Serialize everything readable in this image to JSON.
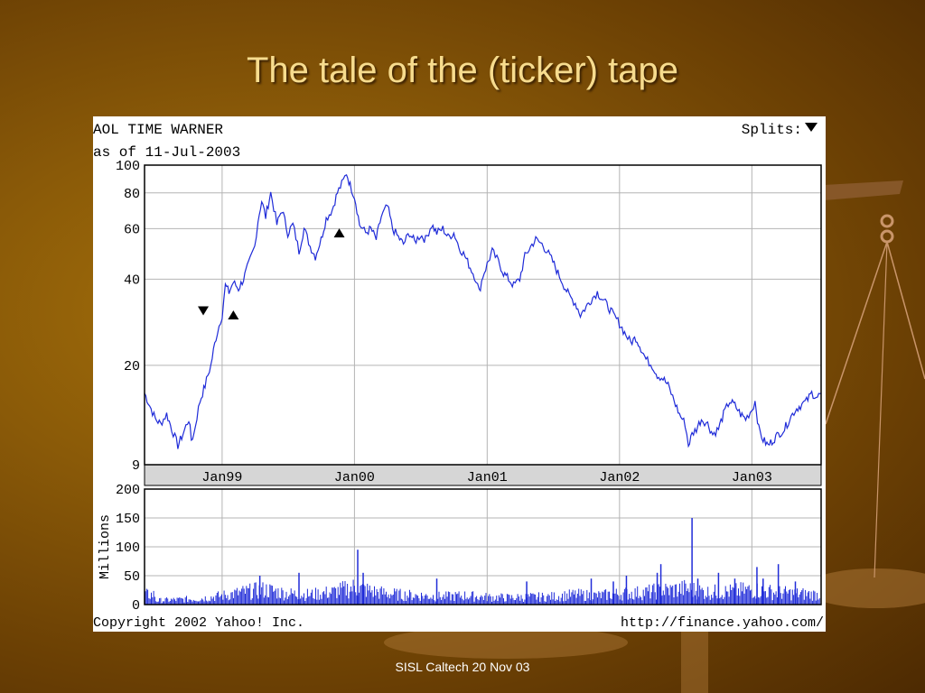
{
  "slide": {
    "title": "The tale of the (ticker) tape",
    "footer": "SISL Caltech 20 Nov 03"
  },
  "chart_data": {
    "type": "line",
    "title": "AOL TIME WARNER",
    "subtitle": "as of 11-Jul-2003",
    "splits_label": "Splits:",
    "copyright": "Copyright 2002 Yahoo! Inc.",
    "url": "http://finance.yahoo.com/",
    "price_axis": {
      "scale": "log",
      "ylim": [
        9,
        100
      ],
      "ticks": [
        9,
        20,
        40,
        60,
        80,
        100
      ],
      "grid": true
    },
    "x_axis": {
      "range": [
        "1998-06-01",
        "2003-07-11"
      ],
      "ticks": [
        {
          "date": "1999-01-01",
          "label": "Jan99"
        },
        {
          "date": "2000-01-01",
          "label": "Jan00"
        },
        {
          "date": "2001-01-01",
          "label": "Jan01"
        },
        {
          "date": "2002-01-01",
          "label": "Jan02"
        },
        {
          "date": "2003-01-01",
          "label": "Jan03"
        }
      ]
    },
    "price_series": {
      "name": "",
      "color": "#1f2bd8",
      "points": [
        [
          "1998-06-01",
          16
        ],
        [
          "1998-06-15",
          14.5
        ],
        [
          "1998-07-01",
          13
        ],
        [
          "1998-07-15",
          12.5
        ],
        [
          "1998-08-01",
          13.5
        ],
        [
          "1998-08-15",
          12
        ],
        [
          "1998-09-01",
          10.5
        ],
        [
          "1998-09-15",
          11.5
        ],
        [
          "1998-10-01",
          13
        ],
        [
          "1998-10-08",
          11
        ],
        [
          "1998-10-15",
          11.5
        ],
        [
          "1998-11-01",
          15
        ],
        [
          "1998-11-15",
          17
        ],
        [
          "1998-12-01",
          20
        ],
        [
          "1998-12-15",
          25
        ],
        [
          "1999-01-01",
          30
        ],
        [
          "1999-01-10",
          38
        ],
        [
          "1999-01-20",
          36
        ],
        [
          "1999-02-01",
          39
        ],
        [
          "1999-02-15",
          37
        ],
        [
          "1999-03-01",
          40
        ],
        [
          "1999-03-15",
          45
        ],
        [
          "1999-04-01",
          52
        ],
        [
          "1999-04-10",
          64
        ],
        [
          "1999-04-20",
          75
        ],
        [
          "1999-05-01",
          66
        ],
        [
          "1999-05-15",
          80
        ],
        [
          "1999-06-01",
          62
        ],
        [
          "1999-06-15",
          70
        ],
        [
          "1999-07-01",
          58
        ],
        [
          "1999-07-15",
          62
        ],
        [
          "1999-08-01",
          50
        ],
        [
          "1999-08-15",
          60
        ],
        [
          "1999-09-01",
          52
        ],
        [
          "1999-09-15",
          48
        ],
        [
          "1999-10-01",
          55
        ],
        [
          "1999-10-15",
          65
        ],
        [
          "1999-11-01",
          70
        ],
        [
          "1999-11-15",
          80
        ],
        [
          "1999-12-01",
          88
        ],
        [
          "1999-12-10",
          94
        ],
        [
          "1999-12-20",
          85
        ],
        [
          "2000-01-01",
          78
        ],
        [
          "2000-01-15",
          62
        ],
        [
          "2000-02-01",
          58
        ],
        [
          "2000-02-15",
          60
        ],
        [
          "2000-03-01",
          55
        ],
        [
          "2000-03-15",
          66
        ],
        [
          "2000-04-01",
          72
        ],
        [
          "2000-04-15",
          60
        ],
        [
          "2000-05-01",
          56
        ],
        [
          "2000-05-15",
          53
        ],
        [
          "2000-06-01",
          58
        ],
        [
          "2000-06-15",
          54
        ],
        [
          "2000-07-01",
          57
        ],
        [
          "2000-07-15",
          55
        ],
        [
          "2000-08-01",
          62
        ],
        [
          "2000-08-15",
          58
        ],
        [
          "2000-09-01",
          60
        ],
        [
          "2000-09-15",
          56
        ],
        [
          "2000-10-01",
          58
        ],
        [
          "2000-10-15",
          52
        ],
        [
          "2000-11-01",
          48
        ],
        [
          "2000-11-15",
          44
        ],
        [
          "2000-12-01",
          40
        ],
        [
          "2000-12-10",
          36
        ],
        [
          "2000-12-20",
          41
        ],
        [
          "2001-01-01",
          45
        ],
        [
          "2001-01-15",
          50
        ],
        [
          "2001-02-01",
          46
        ],
        [
          "2001-02-15",
          42
        ],
        [
          "2001-03-01",
          40
        ],
        [
          "2001-03-15",
          38
        ],
        [
          "2001-04-01",
          40
        ],
        [
          "2001-04-15",
          48
        ],
        [
          "2001-05-01",
          52
        ],
        [
          "2001-05-15",
          55
        ],
        [
          "2001-06-01",
          53
        ],
        [
          "2001-06-15",
          50
        ],
        [
          "2001-07-01",
          46
        ],
        [
          "2001-07-15",
          42
        ],
        [
          "2001-08-01",
          38
        ],
        [
          "2001-08-15",
          35
        ],
        [
          "2001-09-01",
          33
        ],
        [
          "2001-09-15",
          30
        ],
        [
          "2001-10-01",
          32
        ],
        [
          "2001-10-15",
          34
        ],
        [
          "2001-11-01",
          36
        ],
        [
          "2001-11-15",
          34
        ],
        [
          "2001-12-01",
          32
        ],
        [
          "2001-12-15",
          30
        ],
        [
          "2002-01-01",
          28
        ],
        [
          "2002-01-15",
          26
        ],
        [
          "2002-02-01",
          24
        ],
        [
          "2002-02-15",
          25
        ],
        [
          "2002-03-01",
          23
        ],
        [
          "2002-03-15",
          21
        ],
        [
          "2002-04-01",
          20
        ],
        [
          "2002-04-15",
          18.5
        ],
        [
          "2002-05-01",
          18
        ],
        [
          "2002-05-15",
          17
        ],
        [
          "2002-06-01",
          15
        ],
        [
          "2002-06-15",
          13.5
        ],
        [
          "2002-07-01",
          12.5
        ],
        [
          "2002-07-10",
          10.5
        ],
        [
          "2002-07-20",
          11.5
        ],
        [
          "2002-08-01",
          12
        ],
        [
          "2002-08-15",
          13
        ],
        [
          "2002-09-01",
          12.5
        ],
        [
          "2002-09-15",
          11.5
        ],
        [
          "2002-10-01",
          12
        ],
        [
          "2002-10-15",
          13.5
        ],
        [
          "2002-11-01",
          15
        ],
        [
          "2002-11-15",
          14.5
        ],
        [
          "2002-12-01",
          13.5
        ],
        [
          "2002-12-15",
          13
        ],
        [
          "2003-01-01",
          14
        ],
        [
          "2003-01-10",
          15
        ],
        [
          "2003-01-20",
          12
        ],
        [
          "2003-02-01",
          11
        ],
        [
          "2003-02-15",
          10.5
        ],
        [
          "2003-03-01",
          11
        ],
        [
          "2003-03-15",
          11.5
        ],
        [
          "2003-04-01",
          12
        ],
        [
          "2003-04-15",
          13
        ],
        [
          "2003-05-01",
          14
        ],
        [
          "2003-05-15",
          14.5
        ],
        [
          "2003-06-01",
          15
        ],
        [
          "2003-06-15",
          16
        ],
        [
          "2003-07-01",
          15.5
        ],
        [
          "2003-07-11",
          16
        ]
      ]
    },
    "split_markers": [
      {
        "date": "1998-11-10",
        "price": 31,
        "direction": "down"
      },
      {
        "date": "1999-02-01",
        "price": 30,
        "direction": "up"
      },
      {
        "date": "1999-11-20",
        "price": 58,
        "direction": "up"
      }
    ],
    "volume_axis": {
      "label": "Millions",
      "ylim": [
        0,
        200
      ],
      "ticks": [
        0,
        50,
        100,
        150,
        200
      ],
      "grid": true
    },
    "volume_series": {
      "color": "#1f2bd8",
      "points": [
        [
          "1998-07-01",
          8
        ],
        [
          "1998-09-01",
          10
        ],
        [
          "1998-11-01",
          12
        ],
        [
          "1999-01-01",
          18
        ],
        [
          "1999-03-01",
          25
        ],
        [
          "1999-05-01",
          30
        ],
        [
          "1999-07-01",
          22
        ],
        [
          "1999-09-01",
          20
        ],
        [
          "1999-11-01",
          25
        ],
        [
          "2000-01-01",
          35
        ],
        [
          "2000-03-01",
          25
        ],
        [
          "2000-05-01",
          20
        ],
        [
          "2000-07-01",
          18
        ],
        [
          "2000-09-01",
          16
        ],
        [
          "2000-11-01",
          18
        ],
        [
          "2001-01-01",
          15
        ],
        [
          "2001-03-01",
          14
        ],
        [
          "2001-05-01",
          15
        ],
        [
          "2001-07-01",
          16
        ],
        [
          "2001-09-01",
          20
        ],
        [
          "2001-11-01",
          18
        ],
        [
          "2002-01-01",
          22
        ],
        [
          "2002-03-01",
          24
        ],
        [
          "2002-05-01",
          28
        ],
        [
          "2002-07-01",
          32
        ],
        [
          "2002-09-01",
          25
        ],
        [
          "2002-11-01",
          26
        ],
        [
          "2003-01-01",
          30
        ],
        [
          "2003-03-01",
          25
        ],
        [
          "2003-05-01",
          22
        ],
        [
          "2003-07-11",
          20
        ]
      ],
      "spikes": [
        [
          "1999-04-15",
          50
        ],
        [
          "1999-08-01",
          55
        ],
        [
          "2000-01-10",
          95
        ],
        [
          "2000-01-25",
          55
        ],
        [
          "2000-08-15",
          45
        ],
        [
          "2001-04-20",
          40
        ],
        [
          "2001-10-15",
          45
        ],
        [
          "2001-12-15",
          40
        ],
        [
          "2002-01-20",
          50
        ],
        [
          "2002-04-15",
          55
        ],
        [
          "2002-04-25",
          70
        ],
        [
          "2002-07-20",
          150
        ],
        [
          "2002-08-05",
          45
        ],
        [
          "2002-10-01",
          55
        ],
        [
          "2002-11-15",
          45
        ],
        [
          "2003-01-15",
          65
        ],
        [
          "2003-02-01",
          45
        ],
        [
          "2003-03-15",
          70
        ],
        [
          "2003-05-01",
          40
        ]
      ]
    }
  }
}
